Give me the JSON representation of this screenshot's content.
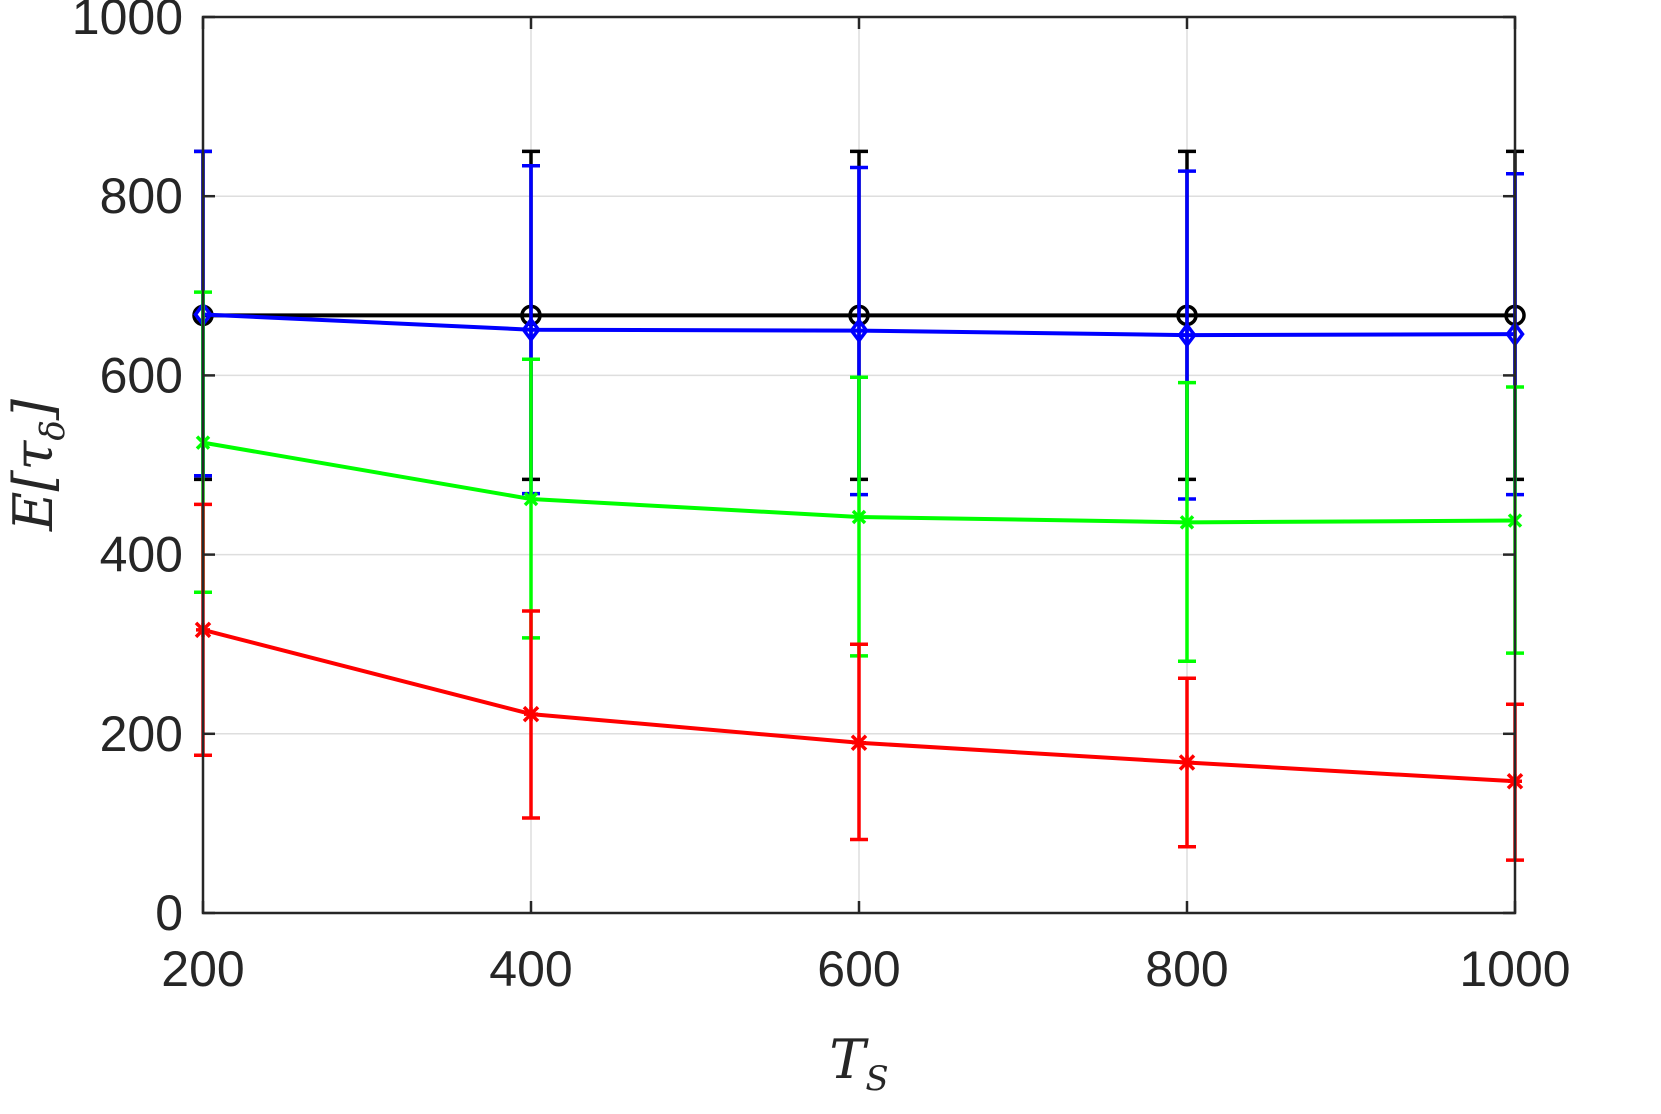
{
  "chart_data": {
    "type": "line",
    "xlabel": "T",
    "xlabel_sub": "S",
    "ylabel": "E[τ",
    "ylabel_sub": "δ",
    "ylabel_close": "]",
    "xlim": [
      200,
      1000
    ],
    "ylim": [
      0,
      1000
    ],
    "xticks": [
      "200",
      "400",
      "600",
      "800",
      "1000"
    ],
    "yticks": [
      "0",
      "200",
      "400",
      "600",
      "800",
      "1000"
    ],
    "grid": true,
    "x": [
      200,
      400,
      600,
      800,
      1000
    ],
    "series": [
      {
        "color": "#000000",
        "marker": "circle",
        "values": [
          667,
          667,
          667,
          667,
          667
        ],
        "err_low": [
          484,
          484,
          484,
          484,
          484
        ],
        "err_high": [
          850,
          850,
          850,
          850,
          850
        ]
      },
      {
        "color": "#0000ff",
        "marker": "diamond",
        "values": [
          668,
          651,
          650,
          645,
          646
        ],
        "err_low": [
          488,
          468,
          467,
          462,
          467
        ],
        "err_high": [
          850,
          834,
          832,
          828,
          825
        ]
      },
      {
        "color": "#00ff00",
        "marker": "x",
        "values": [
          525,
          462,
          442,
          436,
          438
        ],
        "err_low": [
          358,
          307,
          287,
          281,
          290
        ],
        "err_high": [
          693,
          618,
          598,
          592,
          587
        ]
      },
      {
        "color": "#ff0000",
        "marker": "asterisk",
        "values": [
          316,
          222,
          190,
          168,
          147
        ],
        "err_low": [
          176,
          106,
          82,
          74,
          59
        ],
        "err_high": [
          456,
          337,
          300,
          262,
          233
        ]
      }
    ]
  }
}
